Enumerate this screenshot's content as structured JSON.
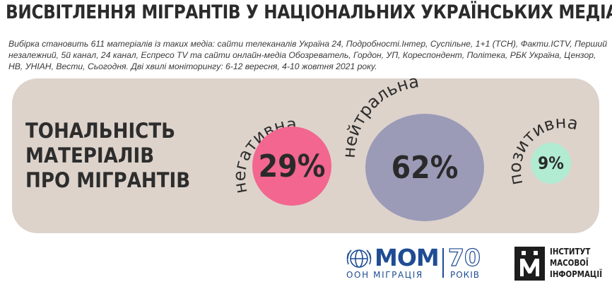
{
  "header": {
    "title": "ВИСВІТЛЕННЯ МІГРАНТІВ У НАЦІОНАЛЬНИХ УКРАЇНСЬКИХ МЕДІА",
    "subtitle": "Вибірка становить 611 матеріалів із таких медіа: сайти телеканалів Україна 24, Подробності.Інтер, Суспільне, 1+1 (ТСН), Факти.ICTV, Перший незалежний, 5й канал, 24 канал, Еспресо TV та сайти онлайн-медіа Обозреватель, Гордон, УП, Кореспондент, Політека, РБК Україна, Цензор, НВ, УНІАН, Вести, Сьогодня.  Дві хвилі моніторингу: 6-12 вересня, 4-10 жовтня 2021 року."
  },
  "panel": {
    "heading_lines": [
      "ТОНАЛЬНІСТЬ",
      "МАТЕРІАЛІВ",
      "ПРО МІГРАНТІВ"
    ]
  },
  "chart_data": {
    "type": "bubble",
    "title": "ТОНАЛЬНІСТЬ МАТЕРІАЛІВ ПРО МІГРАНТІВ",
    "categories": [
      "негативна",
      "нейтральна",
      "позитивна"
    ],
    "values": [
      29,
      62,
      9
    ],
    "labels": [
      "29%",
      "62%",
      "9%"
    ],
    "colors": [
      "#f2668f",
      "#9b9bb8",
      "#b1ebd2"
    ],
    "unit": "%"
  },
  "logos": {
    "iom": {
      "word": "МОМ",
      "subtitle": "ООН МІГРАЦІЯ",
      "anniversary": "70",
      "years": "РОКІВ",
      "color": "#1f4c94"
    },
    "imi": {
      "lines": [
        "ІНСТИТУТ",
        "МАСОВОЇ",
        "ІНФОРМАЦІЇ"
      ]
    }
  },
  "colors": {
    "panel": "#ddd3cb",
    "text": "#2d2d2d"
  }
}
